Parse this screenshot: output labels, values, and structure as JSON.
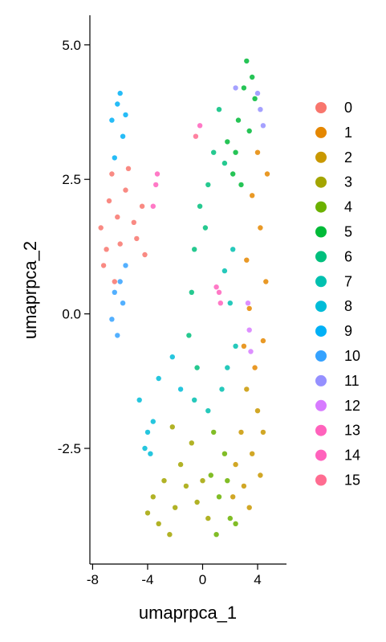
{
  "chart_data": {
    "type": "scatter",
    "title": "",
    "xlabel": "umaprpca_1",
    "ylabel": "umaprpca_2",
    "xlim": [
      -8.2,
      6.1
    ],
    "ylim": [
      -4.65,
      5.55
    ],
    "x_ticks": [
      -8,
      -4,
      0,
      4
    ],
    "x_tick_labels": [
      "-8",
      "-4",
      "0",
      "4"
    ],
    "y_ticks": [
      -2.5,
      0.0,
      2.5,
      5.0
    ],
    "y_tick_labels": [
      "-2.5",
      "0.0",
      "2.5",
      "5.0"
    ],
    "grid": false,
    "legend_position": "right",
    "series": [
      {
        "name": "0",
        "color": "#F8766D",
        "values": [
          [
            -7.4,
            1.6
          ],
          [
            -6.8,
            2.1
          ],
          [
            -6.2,
            1.8
          ],
          [
            -5.6,
            2.3
          ],
          [
            -5.0,
            1.7
          ],
          [
            -4.4,
            2.0
          ],
          [
            -7.0,
            1.2
          ],
          [
            -6.0,
            1.3
          ],
          [
            -4.8,
            1.4
          ],
          [
            -6.6,
            2.6
          ],
          [
            -5.4,
            2.7
          ],
          [
            -7.2,
            0.9
          ],
          [
            -4.2,
            1.1
          ],
          [
            -6.4,
            0.6
          ]
        ]
      },
      {
        "name": "1",
        "color": "#E58700",
        "values": [
          [
            3.6,
            2.2
          ],
          [
            4.2,
            1.6
          ],
          [
            3.2,
            1.0
          ],
          [
            4.6,
            0.6
          ],
          [
            3.4,
            0.1
          ],
          [
            4.4,
            -0.5
          ],
          [
            3.8,
            -1.0
          ],
          [
            4.7,
            2.6
          ],
          [
            3.0,
            -0.6
          ],
          [
            4.0,
            3.0
          ]
        ]
      },
      {
        "name": "2",
        "color": "#C99800",
        "values": [
          [
            3.2,
            -1.4
          ],
          [
            4.0,
            -1.8
          ],
          [
            2.8,
            -2.2
          ],
          [
            3.6,
            -2.6
          ],
          [
            4.4,
            -2.2
          ],
          [
            2.4,
            -2.8
          ],
          [
            3.0,
            -3.2
          ],
          [
            4.2,
            -3.0
          ],
          [
            3.4,
            -3.6
          ],
          [
            2.2,
            -3.4
          ]
        ]
      },
      {
        "name": "3",
        "color": "#A3A500",
        "values": [
          [
            -3.6,
            -3.4
          ],
          [
            -2.8,
            -3.1
          ],
          [
            -2.0,
            -3.6
          ],
          [
            -1.2,
            -3.2
          ],
          [
            -0.4,
            -3.5
          ],
          [
            0.4,
            -3.8
          ],
          [
            -3.2,
            -3.9
          ],
          [
            -2.4,
            -4.1
          ],
          [
            -1.6,
            -2.8
          ],
          [
            -0.8,
            -2.4
          ],
          [
            -2.2,
            -2.1
          ],
          [
            0.0,
            -3.1
          ],
          [
            -4.0,
            -3.7
          ]
        ]
      },
      {
        "name": "4",
        "color": "#6BB100",
        "values": [
          [
            1.2,
            -3.4
          ],
          [
            2.0,
            -3.8
          ],
          [
            1.6,
            -2.6
          ],
          [
            0.8,
            -2.2
          ],
          [
            2.4,
            -3.9
          ],
          [
            1.0,
            -4.1
          ],
          [
            1.8,
            -3.1
          ],
          [
            0.6,
            -3.0
          ]
        ]
      },
      {
        "name": "5",
        "color": "#00BA38",
        "values": [
          [
            3.0,
            4.2
          ],
          [
            3.6,
            4.4
          ],
          [
            2.6,
            3.6
          ],
          [
            3.4,
            3.4
          ],
          [
            2.2,
            2.6
          ],
          [
            2.8,
            2.4
          ],
          [
            1.8,
            3.2
          ],
          [
            3.2,
            4.7
          ],
          [
            2.4,
            3.0
          ],
          [
            3.8,
            4.0
          ]
        ]
      },
      {
        "name": "6",
        "color": "#00BF7D",
        "values": [
          [
            0.8,
            3.0
          ],
          [
            1.2,
            3.8
          ],
          [
            -0.2,
            2.0
          ],
          [
            0.4,
            2.4
          ],
          [
            -0.6,
            1.2
          ],
          [
            -0.8,
            0.4
          ],
          [
            -1.0,
            -0.4
          ],
          [
            0.2,
            1.6
          ],
          [
            1.6,
            2.8
          ],
          [
            -0.4,
            -1.0
          ]
        ]
      },
      {
        "name": "7",
        "color": "#00C0AF",
        "values": [
          [
            1.6,
            0.8
          ],
          [
            2.0,
            0.2
          ],
          [
            2.4,
            -0.6
          ],
          [
            1.4,
            -1.4
          ],
          [
            0.4,
            -1.8
          ],
          [
            -0.6,
            -1.6
          ],
          [
            1.8,
            -1.0
          ],
          [
            2.2,
            1.2
          ]
        ]
      },
      {
        "name": "8",
        "color": "#00BCD8",
        "values": [
          [
            -4.0,
            -2.2
          ],
          [
            -3.6,
            -2.0
          ],
          [
            -4.2,
            -2.5
          ],
          [
            -3.2,
            -1.2
          ],
          [
            -2.2,
            -0.8
          ],
          [
            -1.6,
            -1.4
          ],
          [
            -4.6,
            -1.6
          ],
          [
            -3.8,
            -2.6
          ]
        ]
      },
      {
        "name": "9",
        "color": "#00B0F6",
        "values": [
          [
            -6.2,
            3.9
          ],
          [
            -6.6,
            3.6
          ],
          [
            -5.8,
            3.3
          ],
          [
            -6.0,
            4.1
          ],
          [
            -6.4,
            2.9
          ],
          [
            -5.6,
            3.7
          ]
        ]
      },
      {
        "name": "10",
        "color": "#35A2FF",
        "values": [
          [
            -6.4,
            0.4
          ],
          [
            -6.0,
            0.6
          ],
          [
            -5.6,
            0.9
          ],
          [
            -6.6,
            -0.1
          ],
          [
            -6.2,
            -0.4
          ],
          [
            -5.8,
            0.2
          ]
        ]
      },
      {
        "name": "11",
        "color": "#9590FF",
        "values": [
          [
            4.2,
            3.8
          ],
          [
            4.4,
            3.5
          ],
          [
            2.4,
            4.2
          ],
          [
            4.0,
            4.1
          ]
        ]
      },
      {
        "name": "12",
        "color": "#D77BFF",
        "values": [
          [
            3.4,
            -0.3
          ],
          [
            3.5,
            -0.7
          ],
          [
            3.3,
            0.2
          ]
        ]
      },
      {
        "name": "13",
        "color": "#FF62BC",
        "values": [
          [
            -3.4,
            2.4
          ],
          [
            -3.6,
            2.0
          ],
          [
            -3.3,
            2.6
          ],
          [
            1.2,
            0.4
          ],
          [
            1.3,
            0.2
          ],
          [
            1.0,
            0.5
          ]
        ]
      },
      {
        "name": "14",
        "color": "#FF62BC",
        "values": [
          [
            -0.2,
            3.5
          ]
        ]
      },
      {
        "name": "15",
        "color": "#FF6C91",
        "values": [
          [
            -0.5,
            3.3
          ]
        ]
      }
    ]
  }
}
